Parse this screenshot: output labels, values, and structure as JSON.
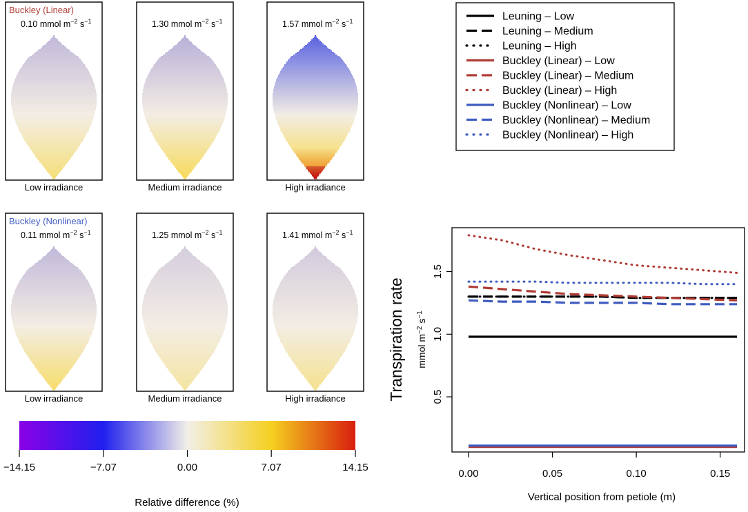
{
  "panels": [
    {
      "row": 0,
      "col": 0,
      "model_label": "Buckley (Linear)",
      "model_color": "#b03a33",
      "rate_value": "0.10",
      "caption": "Low irradiance",
      "tip_shade": 0.3,
      "base_shade": 0.35,
      "hotspot": 0.0
    },
    {
      "row": 0,
      "col": 1,
      "model_label": "",
      "model_color": "",
      "rate_value": "1.30",
      "caption": "Medium irradiance",
      "tip_shade": 0.35,
      "base_shade": 0.45,
      "hotspot": 0.0
    },
    {
      "row": 0,
      "col": 2,
      "model_label": "",
      "model_color": "",
      "rate_value": "1.57",
      "caption": "High irradiance",
      "tip_shade": 0.75,
      "base_shade": 0.55,
      "hotspot": 1.0
    },
    {
      "row": 1,
      "col": 0,
      "model_label": "Buckley (Nonlinear)",
      "model_color": "#3f5bc0",
      "rate_value": "0.11",
      "caption": "Low irradiance",
      "tip_shade": 0.3,
      "base_shade": 0.4,
      "hotspot": 0.0
    },
    {
      "row": 1,
      "col": 1,
      "model_label": "",
      "model_color": "",
      "rate_value": "1.25",
      "caption": "Medium irradiance",
      "tip_shade": 0.18,
      "base_shade": 0.22,
      "hotspot": 0.0
    },
    {
      "row": 1,
      "col": 2,
      "model_label": "",
      "model_color": "",
      "rate_value": "1.41",
      "caption": "High irradiance",
      "tip_shade": 0.2,
      "base_shade": 0.28,
      "hotspot": 0.0
    }
  ],
  "units": {
    "prefix": "mmol m",
    "exp1": "−2",
    "mid": " s",
    "exp2": "−1"
  },
  "colorbar": {
    "ticks": [
      "−14.15",
      "−7.07",
      "0.00",
      "7.07",
      "14.15"
    ],
    "tick_values": [
      -14.15,
      -7.07,
      0.0,
      7.07,
      14.15
    ],
    "range": [
      -14.15,
      14.15
    ],
    "stops": [
      "#8a00e6",
      "#2020ee",
      "#f2efe8",
      "#f5d020",
      "#d81e0e"
    ],
    "label": "Relative difference (%)"
  },
  "chart_data": {
    "type": "line",
    "title": "",
    "xlabel": "Vertical position from petiole (m)",
    "ylabel": "Transpiration rate",
    "ylabel_units": {
      "prefix": "mmol m",
      "exp1": "−2",
      "mid": " s",
      "exp2": "−1"
    },
    "xlim": [
      0.0,
      0.16
    ],
    "ylim": [
      0.06,
      1.85
    ],
    "xticks": [
      0.0,
      0.05,
      0.1,
      0.15
    ],
    "xtick_labels": [
      "0.00",
      "0.05",
      "0.10",
      "0.15"
    ],
    "yticks": [
      0.5,
      1.0,
      1.5
    ],
    "ytick_labels": [
      "0.5",
      "1.0",
      "1.5"
    ],
    "x": [
      0.0,
      0.02,
      0.04,
      0.06,
      0.08,
      0.1,
      0.12,
      0.14,
      0.16
    ],
    "series": [
      {
        "name": "Leuning – Low",
        "color": "#000000",
        "style": "solid",
        "values": [
          0.98,
          0.98,
          0.98,
          0.98,
          0.98,
          0.98,
          0.98,
          0.98,
          0.98
        ]
      },
      {
        "name": "Leuning – Medium",
        "color": "#000000",
        "style": "dashed",
        "values": [
          1.3,
          1.3,
          1.3,
          1.3,
          1.3,
          1.29,
          1.29,
          1.29,
          1.29
        ]
      },
      {
        "name": "Leuning – High",
        "color": "#000000",
        "style": "dotted",
        "values": [
          1.3,
          1.3,
          1.3,
          1.3,
          1.3,
          1.29,
          1.29,
          1.29,
          1.29
        ]
      },
      {
        "name": "Buckley (Linear) – Low",
        "color": "#b03a33",
        "style": "solid",
        "values": [
          0.1,
          0.1,
          0.1,
          0.1,
          0.1,
          0.1,
          0.1,
          0.1,
          0.1
        ]
      },
      {
        "name": "Buckley (Linear) – Medium",
        "color": "#b03a33",
        "style": "dashed",
        "values": [
          1.38,
          1.36,
          1.34,
          1.32,
          1.31,
          1.3,
          1.29,
          1.28,
          1.27
        ]
      },
      {
        "name": "Buckley (Linear) – High",
        "color": "#b03a33",
        "style": "dotted",
        "values": [
          1.79,
          1.75,
          1.68,
          1.63,
          1.59,
          1.55,
          1.53,
          1.51,
          1.49
        ]
      },
      {
        "name": "Buckley (Nonlinear) – Low",
        "color": "#3f5bc0",
        "style": "solid",
        "values": [
          0.11,
          0.11,
          0.11,
          0.11,
          0.11,
          0.11,
          0.11,
          0.11,
          0.11
        ]
      },
      {
        "name": "Buckley (Nonlinear) – Medium",
        "color": "#3f5bc0",
        "style": "dashed",
        "values": [
          1.27,
          1.26,
          1.26,
          1.25,
          1.25,
          1.25,
          1.24,
          1.24,
          1.24
        ]
      },
      {
        "name": "Buckley (Nonlinear) – High",
        "color": "#3f5bc0",
        "style": "dotted",
        "values": [
          1.42,
          1.42,
          1.42,
          1.41,
          1.41,
          1.41,
          1.41,
          1.4,
          1.4
        ]
      }
    ],
    "legend_position": "top-right outside plot"
  }
}
